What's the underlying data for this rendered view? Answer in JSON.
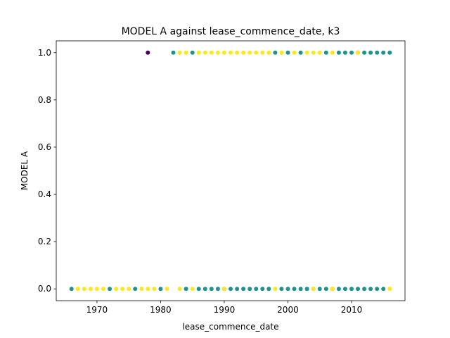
{
  "chart_data": {
    "type": "scatter",
    "title": "MODEL A against lease_commence_date, k3",
    "xlabel": "lease_commence_date",
    "ylabel": "MODEL A",
    "xlim": [
      1963.6,
      2018.4
    ],
    "ylim": [
      -0.05,
      1.05
    ],
    "xticks": [
      1970,
      1980,
      1990,
      2000,
      2010
    ],
    "yticks": [
      0.0,
      0.2,
      0.4,
      0.6,
      0.8,
      1.0
    ],
    "ytick_labels": [
      "0.0",
      "0.2",
      "0.4",
      "0.6",
      "0.8",
      "1.0"
    ],
    "grid": false,
    "legend": "none",
    "colors": {
      "purple": "#440154",
      "teal": "#21918c",
      "yellow": "#fde725"
    },
    "series": [
      {
        "color": "purple",
        "points": [
          [
            1978,
            1
          ]
        ]
      },
      {
        "color": "teal",
        "points": [
          [
            1982,
            1
          ],
          [
            1985,
            1
          ],
          [
            1998,
            1
          ],
          [
            2000,
            1
          ],
          [
            2002,
            1
          ],
          [
            2006,
            1
          ],
          [
            2008,
            1
          ],
          [
            2009,
            1
          ],
          [
            2010,
            1
          ],
          [
            2011,
            1
          ],
          [
            2012,
            1
          ],
          [
            2013,
            1
          ],
          [
            2014,
            1
          ],
          [
            2015,
            1
          ],
          [
            2016,
            1
          ],
          [
            1966,
            0
          ],
          [
            1972,
            0
          ],
          [
            1976,
            0
          ],
          [
            1980,
            0
          ],
          [
            1984,
            0
          ],
          [
            1986,
            0
          ],
          [
            1987,
            0
          ],
          [
            1988,
            0
          ],
          [
            1989,
            0
          ],
          [
            1990,
            0
          ],
          [
            1991,
            0
          ],
          [
            1992,
            0
          ],
          [
            1993,
            0
          ],
          [
            1994,
            0
          ],
          [
            1995,
            0
          ],
          [
            1996,
            0
          ],
          [
            1997,
            0
          ],
          [
            1999,
            0
          ],
          [
            2000,
            0
          ],
          [
            2001,
            0
          ],
          [
            2002,
            0
          ],
          [
            2003,
            0
          ],
          [
            2004,
            0
          ],
          [
            2005,
            0
          ],
          [
            2006,
            0
          ],
          [
            2007,
            0
          ],
          [
            2008,
            0
          ],
          [
            2009,
            0
          ],
          [
            2010,
            0
          ],
          [
            2011,
            0
          ],
          [
            2012,
            0
          ],
          [
            2013,
            0
          ],
          [
            2014,
            0
          ],
          [
            2015,
            0
          ]
        ]
      },
      {
        "color": "yellow",
        "points": [
          [
            1983,
            1
          ],
          [
            1984,
            1
          ],
          [
            1986,
            1
          ],
          [
            1987,
            1
          ],
          [
            1988,
            1
          ],
          [
            1989,
            1
          ],
          [
            1990,
            1
          ],
          [
            1991,
            1
          ],
          [
            1992,
            1
          ],
          [
            1993,
            1
          ],
          [
            1994,
            1
          ],
          [
            1995,
            1
          ],
          [
            1996,
            1
          ],
          [
            1997,
            1
          ],
          [
            1999,
            1
          ],
          [
            2001,
            1
          ],
          [
            2003,
            1
          ],
          [
            2004,
            1
          ],
          [
            2005,
            1
          ],
          [
            2007,
            1
          ],
          [
            2011,
            1
          ],
          [
            1967,
            0
          ],
          [
            1968,
            0
          ],
          [
            1969,
            0
          ],
          [
            1970,
            0
          ],
          [
            1971,
            0
          ],
          [
            1973,
            0
          ],
          [
            1974,
            0
          ],
          [
            1975,
            0
          ],
          [
            1977,
            0
          ],
          [
            1978,
            0
          ],
          [
            1979,
            0
          ],
          [
            1981,
            0
          ],
          [
            1983,
            0
          ],
          [
            1985,
            0
          ],
          [
            1990,
            0
          ],
          [
            1998,
            0
          ],
          [
            2004,
            0
          ],
          [
            2007,
            0
          ],
          [
            2016,
            0
          ]
        ]
      }
    ]
  }
}
